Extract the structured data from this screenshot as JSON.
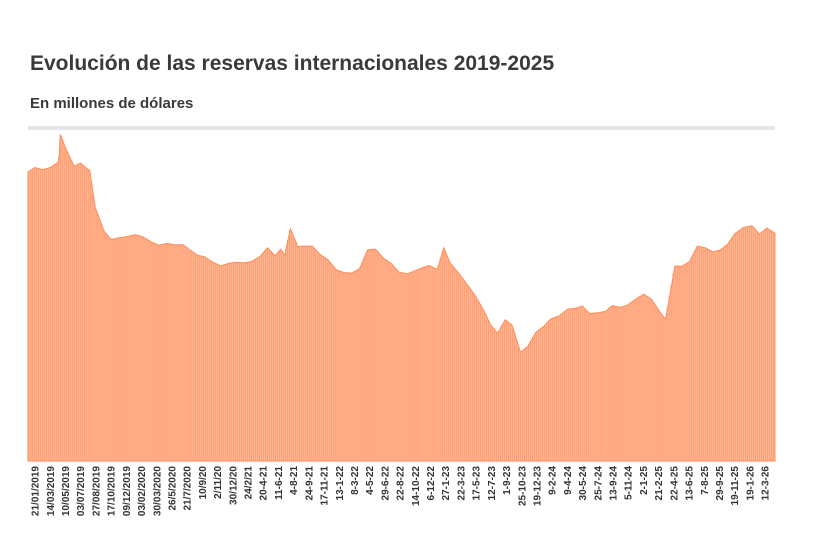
{
  "header": {
    "title": "Evolución de las reservas internacionales 2019-2025",
    "subtitle": "En millones de dólares"
  },
  "colors": {
    "area": "#FF8C5A",
    "area_light": "#FFA47A",
    "rule": "#e6e6e6"
  },
  "chart_data": {
    "type": "area",
    "title": "Evolución de las reservas internacionales 2019-2025",
    "subtitle": "En millones de dólares",
    "xlabel": "",
    "ylabel": "",
    "grid": false,
    "legend": "none",
    "y_axis_labels_shown": false,
    "ylim": [
      0,
      75000
    ],
    "tick_labels": [
      "21/01/2019",
      "14/03/2019",
      "10/05/2019",
      "03/07/2019",
      "27/08/2019",
      "17/10/2019",
      "09/12/2019",
      "03/02/2020",
      "30/03/2020",
      "26/5/2020",
      "21/7/2020",
      "10/9/20",
      "2/11/20",
      "30/12/20",
      "24/2/21",
      "20-4-21",
      "11-6-21",
      "4-8-21",
      "24-9-21",
      "17-11-21",
      "13-1-22",
      "8-3-22",
      "4-5-22",
      "29-6-22",
      "22-8-22",
      "14-10-22",
      "6-12-22",
      "27-1-23",
      "22-3-23",
      "17-5-23",
      "12-7-23",
      "1-9-23",
      "25-10-23",
      "19-12-23",
      "9-2-24",
      "9-4-24",
      "30-5-24",
      "25-7-24",
      "13-9-24",
      "5-11-24",
      "2-1-25",
      "21-2-25",
      "22-4-25",
      "13-6-25",
      "7-8-25",
      "29-9-25",
      "19-11-25",
      "19-1-26",
      "12-3-26"
    ],
    "x": [
      "2019-01-21",
      "2019-02-15",
      "2019-03-14",
      "2019-04-10",
      "2019-05-10",
      "2019-05-15",
      "2019-06-05",
      "2019-07-03",
      "2019-07-25",
      "2019-08-27",
      "2019-09-15",
      "2019-10-17",
      "2019-11-10",
      "2019-12-09",
      "2020-01-10",
      "2020-02-03",
      "2020-03-01",
      "2020-03-30",
      "2020-04-25",
      "2020-05-26",
      "2020-06-20",
      "2020-07-21",
      "2020-08-15",
      "2020-09-10",
      "2020-10-05",
      "2020-11-02",
      "2020-12-01",
      "2020-12-30",
      "2021-01-25",
      "2021-02-24",
      "2021-03-20",
      "2021-04-20",
      "2021-05-15",
      "2021-06-11",
      "2021-07-01",
      "2021-07-15",
      "2021-08-04",
      "2021-08-30",
      "2021-09-24",
      "2021-10-20",
      "2021-11-17",
      "2021-12-15",
      "2022-01-13",
      "2022-02-10",
      "2022-03-08",
      "2022-04-05",
      "2022-05-04",
      "2022-06-01",
      "2022-06-29",
      "2022-07-25",
      "2022-08-22",
      "2022-09-20",
      "2022-10-14",
      "2022-11-10",
      "2022-12-06",
      "2023-01-05",
      "2023-01-27",
      "2023-02-20",
      "2023-03-22",
      "2023-04-20",
      "2023-05-17",
      "2023-06-15",
      "2023-07-12",
      "2023-08-05",
      "2023-09-01",
      "2023-09-25",
      "2023-10-25",
      "2023-11-20",
      "2023-12-19",
      "2024-01-15",
      "2024-02-09",
      "2024-03-10",
      "2024-04-09",
      "2024-05-05",
      "2024-05-30",
      "2024-06-25",
      "2024-07-25",
      "2024-08-20",
      "2024-09-13",
      "2024-10-10",
      "2024-11-05",
      "2024-12-05",
      "2025-01-02",
      "2025-01-30",
      "2025-02-21",
      "2025-03-20",
      "2025-04-22",
      "2025-05-15",
      "2025-06-13",
      "2025-07-10",
      "2025-08-07",
      "2025-09-03",
      "2025-09-29",
      "2025-10-25",
      "2025-11-19",
      "2025-12-20",
      "2026-01-19",
      "2026-02-15",
      "2026-03-12",
      "2026-04-10"
    ],
    "series": [
      {
        "values": [
          65500,
          66500,
          66000,
          66500,
          67800,
          74000,
          70500,
          66800,
          67500,
          65800,
          57500,
          52000,
          50200,
          50600,
          50900,
          51300,
          50800,
          49700,
          48900,
          49300,
          49000,
          49000,
          47800,
          46600,
          46300,
          45100,
          44200,
          44800,
          45000,
          44900,
          45200,
          46400,
          48300,
          46500,
          48000,
          46600,
          52600,
          48600,
          48700,
          48700,
          46800,
          45600,
          43300,
          42700,
          42600,
          43500,
          47900,
          48000,
          45900,
          44800,
          42800,
          42400,
          43000,
          43700,
          44300,
          43400,
          48300,
          44700,
          42500,
          40000,
          37600,
          34400,
          30800,
          28900,
          32000,
          30800,
          24600,
          26000,
          29200,
          30500,
          32200,
          32900,
          34400,
          34600,
          35100,
          33400,
          33600,
          33900,
          35200,
          34800,
          35300,
          36700,
          37800,
          36600,
          34400,
          32100,
          44200,
          44100,
          45200,
          48700,
          48300,
          47400,
          47800,
          49100,
          51500,
          52900,
          53300,
          51400,
          52800,
          51600
        ]
      }
    ]
  }
}
